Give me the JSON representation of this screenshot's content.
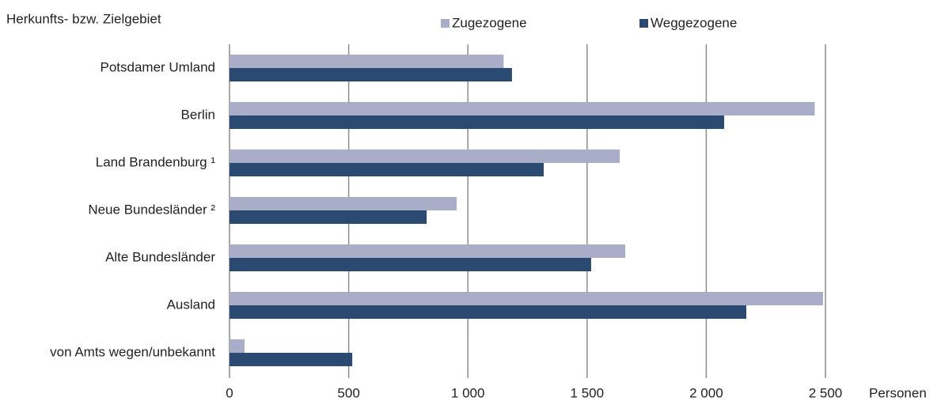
{
  "chart_data": {
    "type": "barh",
    "title": "Herkunfts- bzw. Zielgebiet",
    "x_label": "Personen",
    "categories": [
      "Potsdamer Umland",
      "Berlin",
      "Land Brandenburg ¹",
      "Neue Bundesländer ²",
      "Alte Bundesländer",
      "Ausland",
      "von Amts wegen/unbekannt"
    ],
    "series": [
      {
        "name": "Zugezogene",
        "color": "#a9adc8",
        "values": [
          1150,
          2455,
          1637,
          953,
          1660,
          2490,
          63
        ]
      },
      {
        "name": "Weggezogene",
        "color": "#2b4a72",
        "values": [
          1185,
          2075,
          1318,
          827,
          1517,
          2168,
          515
        ]
      }
    ],
    "xlim": [
      0,
      2500
    ],
    "xticks": [
      0,
      500,
      {
        "value": 1000,
        "label": "1 000"
      },
      {
        "value": 1500,
        "label": "1 500"
      },
      {
        "value": 2000,
        "label": "2 000"
      },
      {
        "value": 2500,
        "label": "2 500"
      }
    ],
    "grid": true,
    "legend": "top"
  }
}
